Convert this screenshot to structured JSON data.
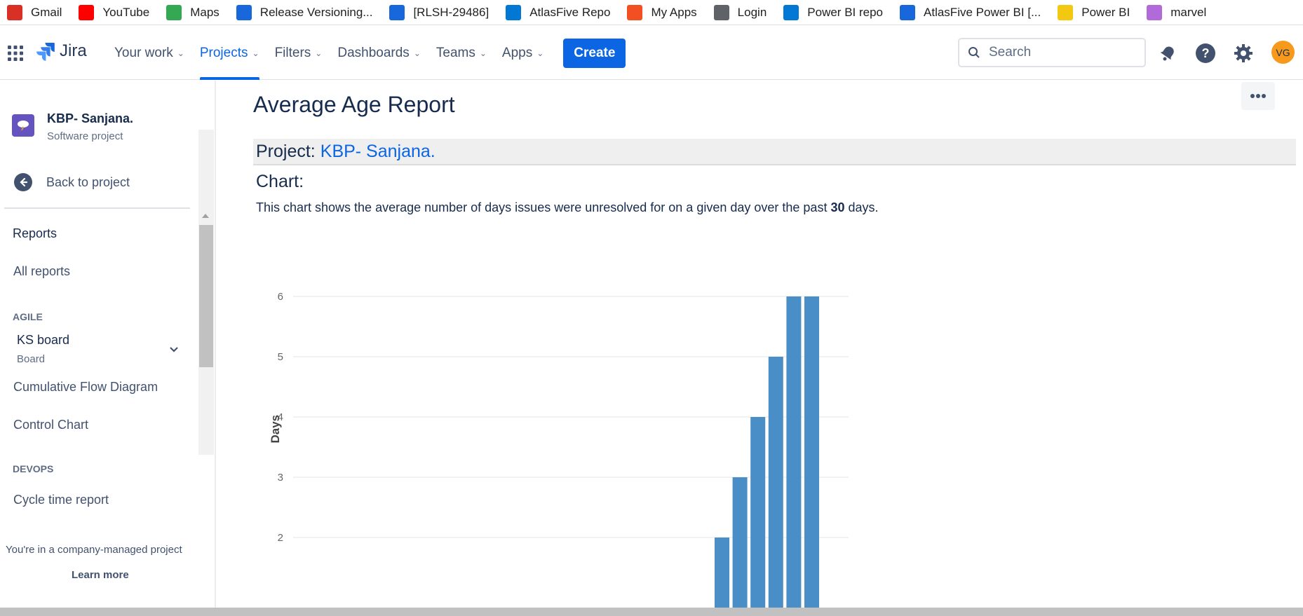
{
  "bookmarks": [
    {
      "label": "Gmail",
      "icon": "gmail-icon",
      "color": "#d93025"
    },
    {
      "label": "YouTube",
      "icon": "youtube-icon",
      "color": "#ff0000"
    },
    {
      "label": "Maps",
      "icon": "maps-icon",
      "color": "#34a853"
    },
    {
      "label": "Release Versioning...",
      "icon": "confluence-icon",
      "color": "#1868db"
    },
    {
      "label": "[RLSH-29486]",
      "icon": "jira-icon",
      "color": "#1868db"
    },
    {
      "label": "AtlasFive Repo",
      "icon": "azure-devops-icon",
      "color": "#0078d4"
    },
    {
      "label": "My Apps",
      "icon": "microsoft-icon",
      "color": "#f25022"
    },
    {
      "label": "Login",
      "icon": "page-icon",
      "color": "#5f6368"
    },
    {
      "label": "Power BI repo",
      "icon": "azure-devops-icon",
      "color": "#0078d4"
    },
    {
      "label": "AtlasFive Power BI [...",
      "icon": "confluence-icon",
      "color": "#1868db"
    },
    {
      "label": "Power BI",
      "icon": "powerbi-icon",
      "color": "#f2c811"
    },
    {
      "label": "marvel",
      "icon": "marvel-icon",
      "color": "#b06ad9"
    }
  ],
  "nav": {
    "logo": "Jira",
    "items": [
      "Your work",
      "Projects",
      "Filters",
      "Dashboards",
      "Teams",
      "Apps"
    ],
    "active_index": 1,
    "create": "Create",
    "search_placeholder": "Search",
    "avatar": "VG"
  },
  "sidebar": {
    "project_name": "KBP- Sanjana.",
    "project_type": "Software project",
    "back": "Back to project",
    "reports_heading": "Reports",
    "all_reports": "All reports",
    "agile_heading": "AGILE",
    "board_name": "KS board",
    "board_type": "Board",
    "cfd": "Cumulative Flow Diagram",
    "control_chart": "Control Chart",
    "devops_heading": "DEVOPS",
    "cycle_time": "Cycle time report",
    "company_note": "You're in a company-managed project",
    "learn_more": "Learn more"
  },
  "main": {
    "title": "Average Age Report",
    "project_label": "Project:",
    "project_link": "KBP- Sanjana.",
    "chart_heading": "Chart:",
    "desc_before": "This chart shows the average number of days issues were unresolved for on a given day over the past",
    "desc_bold": "30",
    "desc_after": "days."
  },
  "colors": {
    "accent": "#0c66e4",
    "bar": "#4a8ec8"
  },
  "chart_data": {
    "type": "bar",
    "ylabel": "Days",
    "yticks": [
      2,
      3,
      4,
      5,
      6
    ],
    "ylim": [
      1,
      6
    ],
    "values": [
      2,
      3,
      4,
      5,
      6,
      6
    ],
    "grid": true
  }
}
